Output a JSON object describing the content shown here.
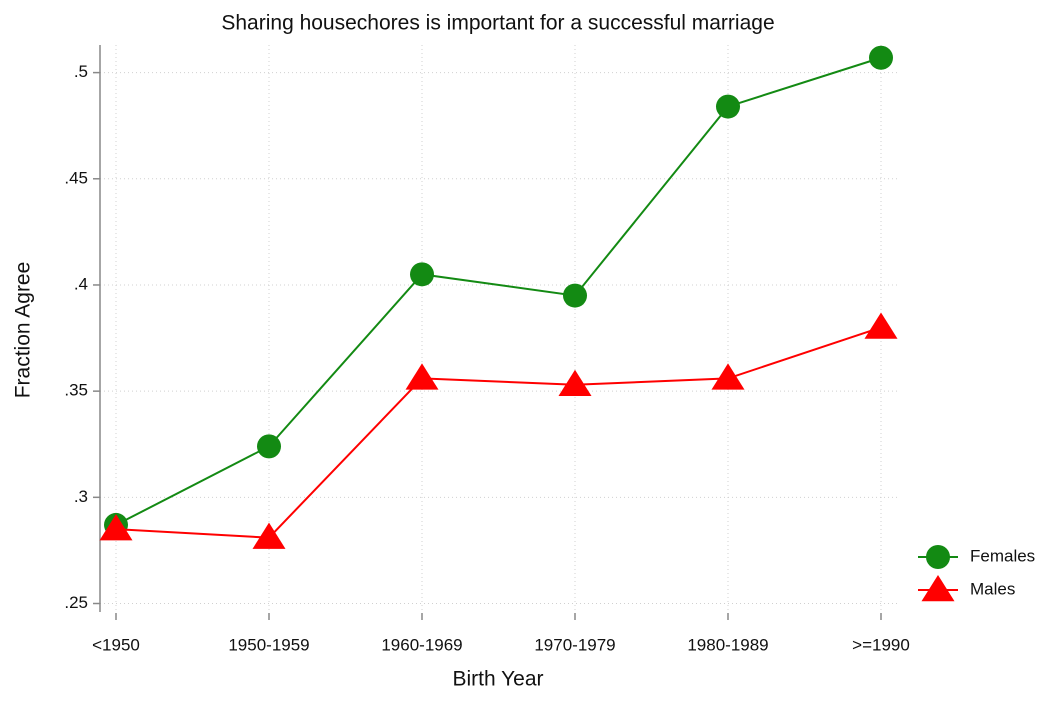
{
  "chart_data": {
    "type": "line",
    "title": "Sharing housechores is important for a successful marriage",
    "x_label": "Birth Year",
    "y_label": "Fraction Agree",
    "categories": [
      "<1950",
      "1950-1959",
      "1960-1969",
      "1970-1979",
      "1980-1989",
      ">=1990"
    ],
    "series": [
      {
        "name": "Females",
        "color": "#138a13",
        "marker": "circle",
        "values": [
          0.287,
          0.324,
          0.405,
          0.395,
          0.484,
          0.507
        ]
      },
      {
        "name": "Males",
        "color": "#ff0000",
        "marker": "triangle",
        "values": [
          0.285,
          0.281,
          0.356,
          0.353,
          0.356,
          0.38
        ]
      }
    ],
    "ylim": [
      0.246,
      0.513
    ],
    "yticks": [
      {
        "value": 0.25,
        "label": ".25"
      },
      {
        "value": 0.3,
        "label": ".3"
      },
      {
        "value": 0.35,
        "label": ".35"
      },
      {
        "value": 0.4,
        "label": ".4"
      },
      {
        "value": 0.45,
        "label": ".45"
      },
      {
        "value": 0.5,
        "label": ".5"
      }
    ],
    "grid": true,
    "legend": "lower right"
  }
}
